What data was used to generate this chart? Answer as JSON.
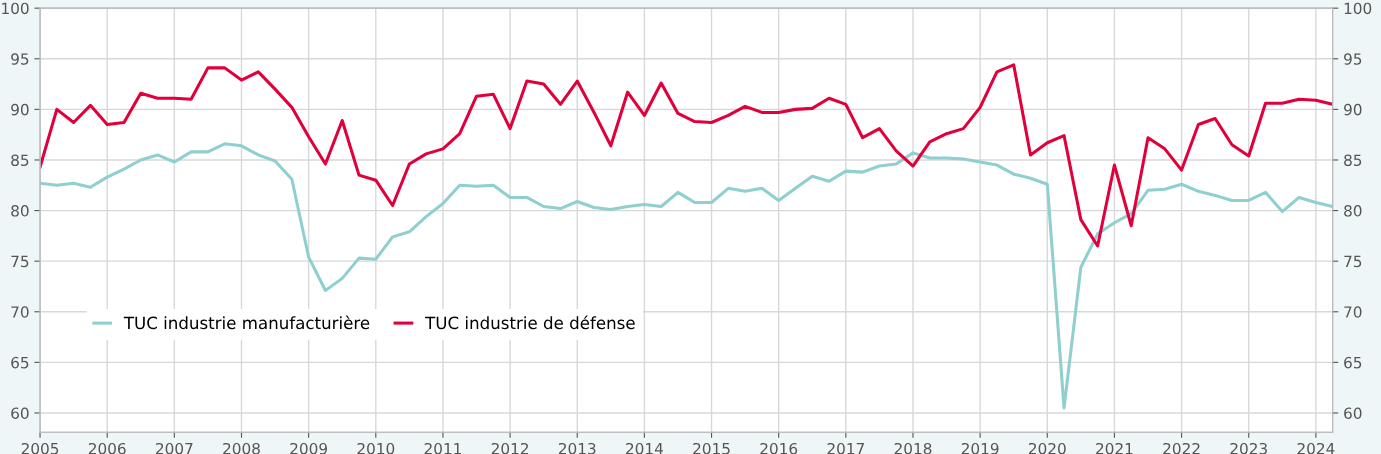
{
  "chart_data": {
    "type": "line",
    "x": [
      2005,
      2005.25,
      2005.5,
      2005.75,
      2006,
      2006.25,
      2006.5,
      2006.75,
      2007,
      2007.25,
      2007.5,
      2007.75,
      2008,
      2008.25,
      2008.5,
      2008.75,
      2009,
      2009.25,
      2009.5,
      2009.75,
      2010,
      2010.25,
      2010.5,
      2010.75,
      2011,
      2011.25,
      2011.5,
      2011.75,
      2012,
      2012.25,
      2012.5,
      2012.75,
      2013,
      2013.25,
      2013.5,
      2013.75,
      2014,
      2014.25,
      2014.5,
      2014.75,
      2015,
      2015.25,
      2015.5,
      2015.75,
      2016,
      2016.25,
      2016.5,
      2016.75,
      2017,
      2017.25,
      2017.5,
      2017.75,
      2018,
      2018.25,
      2018.5,
      2018.75,
      2019,
      2019.25,
      2019.5,
      2019.75,
      2020,
      2020.25,
      2020.5,
      2020.75,
      2021,
      2021.25,
      2021.5,
      2021.75,
      2022,
      2022.25,
      2022.5,
      2022.75,
      2023,
      2023.25,
      2023.5,
      2023.75,
      2024,
      2024.25
    ],
    "series": [
      {
        "name": "TUC industrie manufacturière",
        "color": "#8fcfcf",
        "values": [
          82.7,
          82.5,
          82.7,
          82.3,
          83.3,
          84.1,
          85.0,
          85.5,
          84.8,
          85.8,
          85.8,
          86.6,
          86.4,
          85.5,
          84.9,
          83.1,
          75.4,
          72.1,
          73.3,
          75.3,
          75.2,
          77.4,
          77.9,
          79.4,
          80.7,
          82.5,
          82.4,
          82.5,
          81.3,
          81.3,
          80.4,
          80.2,
          80.9,
          80.3,
          80.1,
          80.4,
          80.6,
          80.4,
          81.8,
          80.8,
          80.8,
          82.2,
          81.9,
          82.2,
          81.0,
          82.2,
          83.4,
          82.9,
          83.9,
          83.8,
          84.4,
          84.6,
          85.7,
          85.2,
          85.2,
          85.1,
          84.8,
          84.5,
          83.6,
          83.2,
          82.6,
          60.5,
          74.4,
          77.7,
          78.8,
          79.7,
          82.0,
          82.1,
          82.6,
          81.9,
          81.5,
          81.0,
          81.0,
          81.8,
          79.9,
          81.3,
          80.8,
          80.4
        ]
      },
      {
        "name": "TUC industrie de défense",
        "color": "#e0003c",
        "values": [
          84.3,
          90.0,
          88.7,
          90.4,
          88.5,
          88.7,
          91.6,
          91.1,
          91.1,
          91.0,
          94.1,
          94.1,
          92.9,
          93.7,
          92.0,
          90.2,
          87.3,
          84.6,
          88.9,
          83.5,
          83.0,
          80.5,
          84.6,
          85.6,
          86.1,
          87.6,
          91.3,
          91.5,
          88.1,
          92.8,
          92.5,
          90.5,
          92.8,
          89.7,
          86.4,
          91.7,
          89.4,
          92.6,
          89.6,
          88.8,
          88.7,
          89.4,
          90.3,
          89.7,
          89.7,
          90.0,
          90.1,
          91.1,
          90.5,
          87.2,
          88.1,
          85.9,
          84.4,
          86.8,
          87.6,
          88.1,
          90.2,
          93.7,
          94.4,
          85.5,
          86.7,
          87.4,
          79.1,
          76.5,
          84.5,
          78.5,
          87.2,
          86.1,
          84.0,
          88.5,
          89.1,
          86.5,
          85.4,
          90.6,
          90.6,
          91.0,
          90.9,
          90.5
        ]
      }
    ],
    "xlim": [
      2005,
      2024.25
    ],
    "xticks": [
      2005,
      2006,
      2007,
      2008,
      2009,
      2010,
      2011,
      2012,
      2013,
      2014,
      2015,
      2016,
      2017,
      2018,
      2019,
      2020,
      2021,
      2022,
      2023,
      2024
    ],
    "ylim": [
      58.1,
      100
    ],
    "yticks": [
      60,
      65,
      70,
      75,
      80,
      85,
      90,
      95,
      100
    ],
    "y2lim": [
      58.1,
      100
    ],
    "y2ticks": [
      60,
      65,
      70,
      75,
      80,
      85,
      90,
      95,
      100
    ],
    "grid": true,
    "legend": "bottom left",
    "marker": "none",
    "line_style": "solid"
  }
}
